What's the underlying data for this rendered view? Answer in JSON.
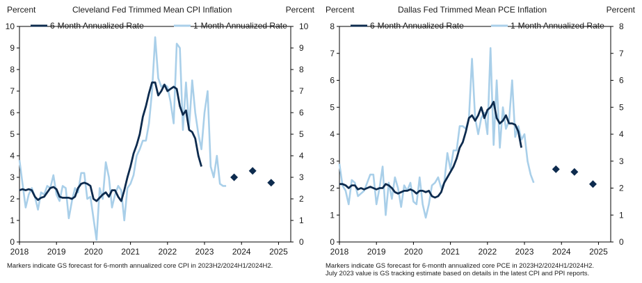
{
  "colors": {
    "six_month": "#0d2b4e",
    "one_month": "#a9cfe9",
    "forecast": "#0d2b4e"
  },
  "chart_data": [
    {
      "type": "line",
      "title": "Cleveland  Fed Trimmed  Mean CPI Inflation",
      "left_unit_label": "Percent",
      "right_unit_label": "Percent",
      "ylim": [
        0,
        10
      ],
      "yticks": [
        "0",
        "1",
        "2",
        "3",
        "4",
        "5",
        "6",
        "7",
        "8",
        "9",
        "10"
      ],
      "xlim": [
        2018,
        2025.33
      ],
      "xticks": [
        "2018",
        "2019",
        "2020",
        "2021",
        "2022",
        "2023",
        "2024",
        "2025"
      ],
      "legend": {
        "six_month": "6-Month  Annualized Rate",
        "one_month": "1-Month  Annualized Rate"
      },
      "footnote": [
        "Markers indicate GS  forecast for 6-month annualized core CPI  in 2023H2/2024H1/2024H2."
      ],
      "series": [
        {
          "name": "1-Month  Annualized Rate",
          "start": 2018.0,
          "step": 0.08333,
          "values": [
            3.8,
            2.7,
            1.6,
            2.2,
            2.5,
            2.1,
            1.5,
            2.3,
            2.2,
            2.6,
            2.5,
            3.1,
            2.2,
            1.9,
            2.6,
            2.5,
            1.1,
            1.9,
            2.5,
            2.3,
            3.2,
            3.2,
            2.0,
            2.1,
            1.1,
            0.1,
            2.5,
            2.0,
            3.7,
            3.0,
            1.6,
            2.2,
            2.6,
            2.4,
            1.0,
            2.5,
            2.7,
            3.1,
            4.0,
            4.3,
            4.7,
            4.7,
            5.5,
            7.0,
            9.5,
            7.6,
            7.2,
            7.3,
            7.2,
            6.5,
            5.5,
            9.2,
            9.0,
            5.2,
            7.4,
            5.3,
            7.5,
            6.0,
            5.0,
            4.3,
            6.0,
            7.0,
            3.5,
            3.0,
            4.0,
            2.7,
            2.6,
            2.6
          ]
        },
        {
          "name": "6-Month  Annualized Rate",
          "start": 2018.0,
          "step": 0.08333,
          "values": [
            2.4,
            2.45,
            2.4,
            2.45,
            2.4,
            2.1,
            1.95,
            2.05,
            2.1,
            2.3,
            2.5,
            2.55,
            2.45,
            2.1,
            2.05,
            2.05,
            2.05,
            2.0,
            2.1,
            2.5,
            2.7,
            2.75,
            2.7,
            2.6,
            2.0,
            1.9,
            2.05,
            2.2,
            2.3,
            2.1,
            2.4,
            2.4,
            2.1,
            1.9,
            2.4,
            3.0,
            3.5,
            4.1,
            4.5,
            5.0,
            5.8,
            6.3,
            6.9,
            7.4,
            7.4,
            6.8,
            7.0,
            7.3,
            7.0,
            7.1,
            7.2,
            7.1,
            6.3,
            5.9,
            6.1,
            5.2,
            5.1,
            4.8,
            4.0,
            3.5
          ]
        }
      ],
      "forecast_markers": {
        "x": [
          2023.8,
          2024.3,
          2024.8
        ],
        "y": [
          3.0,
          3.3,
          2.75
        ]
      }
    },
    {
      "type": "line",
      "title": "Dallas Fed Trimmed  Mean PCE Inflation",
      "left_unit_label": "Percent",
      "right_unit_label": "Percent",
      "ylim": [
        0,
        8
      ],
      "yticks": [
        "0",
        "1",
        "2",
        "3",
        "4",
        "5",
        "6",
        "7",
        "8"
      ],
      "xlim": [
        2018,
        2025.33
      ],
      "xticks": [
        "2018",
        "2019",
        "2020",
        "2021",
        "2022",
        "2023",
        "2024",
        "2025"
      ],
      "legend": {
        "six_month": "6-Month  Annualized Rate",
        "one_month": "1-Month  Annualized Rate"
      },
      "footnote": [
        "Markers indicate GS  forecast for 6-month annualized core PCE  in 2023H2/2024H1/2024H2.",
        "July 2023 value is GS tracking estimate based on details in the latest CPI  and PPI  reports."
      ],
      "series": [
        {
          "name": "1-Month  Annualized Rate",
          "start": 2018.0,
          "step": 0.08333,
          "values": [
            2.9,
            2.1,
            1.9,
            1.4,
            2.3,
            2.2,
            1.7,
            1.8,
            1.9,
            2.2,
            2.5,
            2.5,
            1.4,
            2.0,
            2.8,
            1.0,
            2.2,
            1.6,
            2.4,
            2.0,
            1.3,
            2.1,
            1.9,
            2.2,
            1.5,
            1.4,
            2.4,
            1.4,
            0.9,
            1.4,
            2.1,
            2.2,
            2.4,
            2.0,
            2.2,
            3.3,
            2.7,
            3.4,
            3.4,
            4.3,
            4.3,
            4.2,
            4.6,
            6.8,
            4.6,
            4.0,
            4.6,
            4.8,
            4.0,
            7.2,
            3.6,
            6.0,
            3.5,
            5.0,
            4.2,
            4.5,
            6.0,
            3.9,
            4.3,
            3.8,
            4.0,
            3.0,
            2.5,
            2.2
          ]
        },
        {
          "name": "6-Month  Annualized Rate",
          "start": 2018.0,
          "step": 0.08333,
          "values": [
            2.15,
            2.15,
            2.1,
            2.0,
            2.1,
            2.1,
            1.95,
            2.0,
            1.95,
            2.0,
            2.05,
            2.0,
            1.95,
            2.0,
            2.0,
            2.15,
            2.1,
            2.0,
            1.85,
            1.8,
            1.85,
            1.9,
            1.9,
            1.95,
            1.9,
            1.8,
            1.9,
            1.9,
            1.85,
            1.9,
            1.7,
            1.65,
            1.7,
            1.85,
            2.2,
            2.4,
            2.6,
            2.8,
            3.1,
            3.5,
            3.7,
            4.1,
            4.6,
            4.7,
            4.5,
            4.7,
            5.0,
            4.6,
            4.9,
            5.0,
            5.2,
            4.6,
            4.4,
            4.5,
            4.7,
            4.4,
            4.4,
            4.35,
            4.1,
            3.5
          ]
        }
      ],
      "forecast_markers": {
        "x": [
          2023.85,
          2024.35,
          2024.85
        ],
        "y": [
          2.7,
          2.6,
          2.15
        ]
      }
    }
  ]
}
